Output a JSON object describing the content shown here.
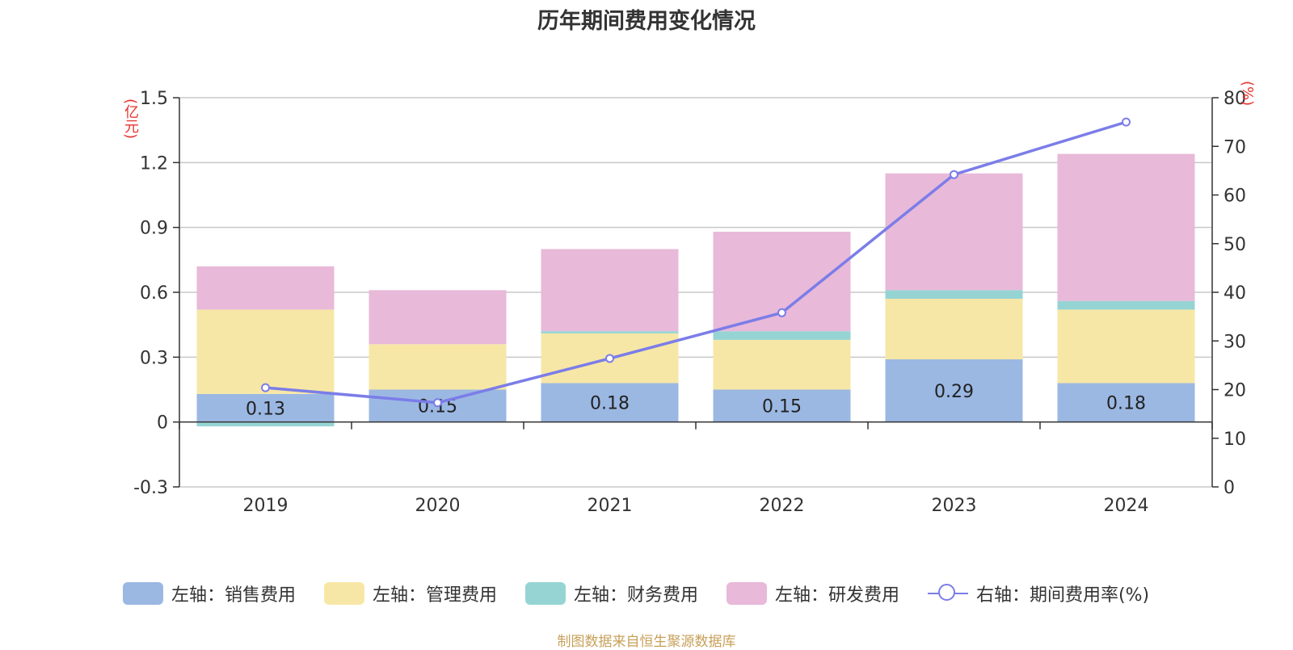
{
  "source_note": "制图数据来自恒生聚源数据库",
  "chart_data": {
    "type": "bar",
    "stacked": true,
    "title": "历年期间费用变化情况",
    "categories": [
      "2019",
      "2020",
      "2021",
      "2022",
      "2023",
      "2024"
    ],
    "left_axis": {
      "unit": "(亿元)",
      "ylim": [
        -0.3,
        1.5
      ],
      "ticks": [
        "-0.3",
        "0",
        "0.3",
        "0.6",
        "0.9",
        "1.2",
        "1.5"
      ]
    },
    "right_axis": {
      "unit": "(%)",
      "ylim": [
        0,
        80
      ],
      "ticks": [
        "0",
        "10",
        "20",
        "30",
        "40",
        "50",
        "60",
        "70",
        "80"
      ]
    },
    "series": [
      {
        "name": "左轴：销售费用",
        "color": "#9bb8e3",
        "values": [
          0.13,
          0.15,
          0.18,
          0.15,
          0.29,
          0.18
        ],
        "labels": [
          "0.13",
          "0.15",
          "0.18",
          "0.15",
          "0.29",
          "0.18"
        ]
      },
      {
        "name": "左轴：管理费用",
        "color": "#f7e7a6",
        "values": [
          0.39,
          0.21,
          0.23,
          0.23,
          0.28,
          0.34
        ]
      },
      {
        "name": "左轴：财务费用",
        "color": "#96d4d4",
        "values": [
          -0.02,
          0.0,
          0.01,
          0.04,
          0.04,
          0.04
        ]
      },
      {
        "name": "左轴：研发费用",
        "color": "#e8b9d9",
        "values": [
          0.2,
          0.25,
          0.38,
          0.46,
          0.54,
          0.68
        ]
      }
    ],
    "line_series": {
      "name": "右轴：期间费用率(%)",
      "color": "#7b7de8",
      "axis": "right",
      "values": [
        20.4,
        17.3,
        26.4,
        35.8,
        64.2,
        75.0
      ]
    },
    "grid": true,
    "legend_position": "bottom"
  }
}
